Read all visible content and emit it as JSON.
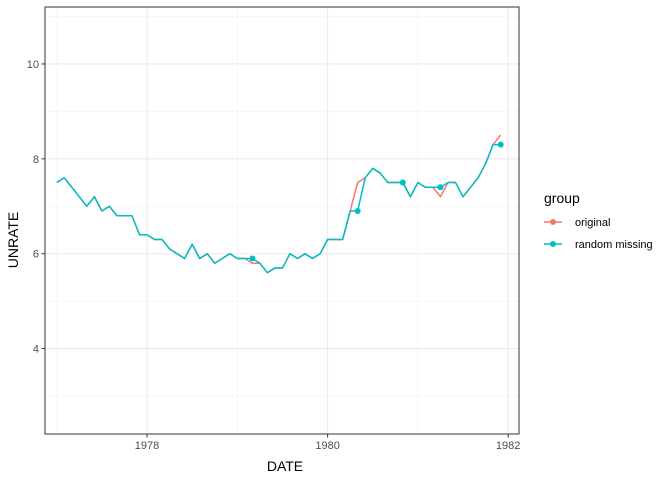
{
  "chart_data": {
    "type": "line",
    "xlabel": "DATE",
    "ylabel": "UNRATE",
    "xlim": [
      1976.87,
      1982.12
    ],
    "ylim": [
      2.2,
      11.2
    ],
    "x_ticks": [
      {
        "value": 1978,
        "label": "1978"
      },
      {
        "value": 1980,
        "label": "1980"
      },
      {
        "value": 1982,
        "label": "1982"
      }
    ],
    "y_ticks": [
      {
        "value": 4,
        "label": "4"
      },
      {
        "value": 6,
        "label": "6"
      },
      {
        "value": 8,
        "label": "8"
      },
      {
        "value": 10,
        "label": "10"
      }
    ],
    "grid": true,
    "legend": {
      "title": "group",
      "position": "right",
      "entries": [
        {
          "label": "original",
          "color": "#F8766D"
        },
        {
          "label": "random missing",
          "color": "#00BFC4"
        }
      ]
    },
    "series": [
      {
        "name": "original",
        "color": "#F8766D",
        "x": [
          1977.0,
          1977.083,
          1977.167,
          1977.25,
          1977.333,
          1977.417,
          1977.5,
          1977.583,
          1977.667,
          1977.75,
          1977.833,
          1977.917,
          1978.0,
          1978.083,
          1978.167,
          1978.25,
          1978.333,
          1978.417,
          1978.5,
          1978.583,
          1978.667,
          1978.75,
          1978.833,
          1978.917,
          1979.0,
          1979.083,
          1979.167,
          1979.25,
          1979.333,
          1979.417,
          1979.5,
          1979.583,
          1979.667,
          1979.75,
          1979.833,
          1979.917,
          1980.0,
          1980.083,
          1980.167,
          1980.25,
          1980.333,
          1980.417,
          1980.5,
          1980.583,
          1980.667,
          1980.75,
          1980.833,
          1980.917,
          1981.0,
          1981.083,
          1981.167,
          1981.25,
          1981.333,
          1981.417,
          1981.5,
          1981.583,
          1981.667,
          1981.75,
          1981.833,
          1981.917
        ],
        "values": [
          7.5,
          7.6,
          7.4,
          7.2,
          7.0,
          7.2,
          6.9,
          7.0,
          6.8,
          6.8,
          6.8,
          6.4,
          6.4,
          6.3,
          6.3,
          6.1,
          6.0,
          5.9,
          6.2,
          5.9,
          6.0,
          5.8,
          5.9,
          6.0,
          5.9,
          5.9,
          5.8,
          5.8,
          5.6,
          5.7,
          5.7,
          6.0,
          5.9,
          6.0,
          5.9,
          6.0,
          6.3,
          6.3,
          6.3,
          6.9,
          7.5,
          7.6,
          7.8,
          7.7,
          7.5,
          7.5,
          7.5,
          7.2,
          7.5,
          7.4,
          7.4,
          7.2,
          7.5,
          7.5,
          7.2,
          7.4,
          7.6,
          7.9,
          8.3,
          8.5
        ]
      },
      {
        "name": "random missing",
        "color": "#00BFC4",
        "x": [
          1977.0,
          1977.083,
          1977.167,
          1977.25,
          1977.333,
          1977.417,
          1977.5,
          1977.583,
          1977.667,
          1977.75,
          1977.833,
          1977.917,
          1978.0,
          1978.083,
          1978.167,
          1978.25,
          1978.333,
          1978.417,
          1978.5,
          1978.583,
          1978.667,
          1978.75,
          1978.833,
          1978.917,
          1979.0,
          1979.083,
          1979.167,
          1979.25,
          1979.333,
          1979.417,
          1979.5,
          1979.583,
          1979.667,
          1979.75,
          1979.833,
          1979.917,
          1980.0,
          1980.083,
          1980.167,
          1980.25,
          1980.333,
          1980.417,
          1980.5,
          1980.583,
          1980.667,
          1980.75,
          1980.833,
          1980.917,
          1981.0,
          1981.083,
          1981.167,
          1981.25,
          1981.333,
          1981.417,
          1981.5,
          1981.583,
          1981.667,
          1981.75,
          1981.833,
          1981.917
        ],
        "values": [
          7.5,
          7.6,
          7.4,
          7.2,
          7.0,
          7.2,
          6.9,
          7.0,
          6.8,
          6.8,
          6.8,
          6.4,
          6.4,
          6.3,
          6.3,
          6.1,
          6.0,
          5.9,
          6.2,
          5.9,
          6.0,
          5.8,
          5.9,
          6.0,
          5.9,
          5.9,
          5.9,
          5.8,
          5.6,
          5.7,
          5.7,
          6.0,
          5.9,
          6.0,
          5.9,
          6.0,
          6.3,
          6.3,
          6.3,
          6.9,
          6.9,
          7.6,
          7.8,
          7.7,
          7.5,
          7.5,
          7.5,
          7.2,
          7.5,
          7.4,
          7.4,
          7.4,
          7.5,
          7.5,
          7.2,
          7.4,
          7.6,
          7.9,
          8.3,
          8.3
        ]
      }
    ],
    "points": [
      {
        "series": "random missing",
        "x": 1979.167,
        "y": 5.9
      },
      {
        "series": "random missing",
        "x": 1980.333,
        "y": 6.9
      },
      {
        "series": "random missing",
        "x": 1980.833,
        "y": 7.5
      },
      {
        "series": "random missing",
        "x": 1981.25,
        "y": 7.4
      },
      {
        "series": "random missing",
        "x": 1981.917,
        "y": 8.3
      }
    ]
  }
}
